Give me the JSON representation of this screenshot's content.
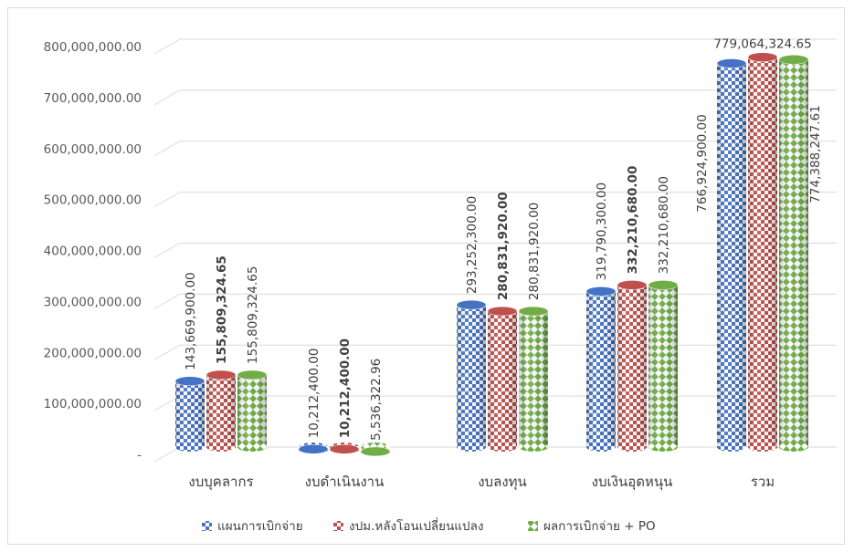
{
  "chart_data": {
    "type": "bar",
    "style": "3d-cylinder",
    "title": "",
    "xlabel": "",
    "ylabel": "",
    "ylim": [
      0,
      800000000
    ],
    "yticks": [
      {
        "value": 0,
        "label": "-"
      },
      {
        "value": 100000000,
        "label": "100,000,000.00"
      },
      {
        "value": 200000000,
        "label": "200,000,000.00"
      },
      {
        "value": 300000000,
        "label": "300,000,000.00"
      },
      {
        "value": 400000000,
        "label": "400,000,000.00"
      },
      {
        "value": 500000000,
        "label": "500,000,000.00"
      },
      {
        "value": 600000000,
        "label": "600,000,000.00"
      },
      {
        "value": 700000000,
        "label": "700,000,000.00"
      },
      {
        "value": 800000000,
        "label": "800,000,000.00"
      }
    ],
    "grid": true,
    "legend_position": "bottom",
    "categories": [
      "งบบุคลากร",
      "งบดำเนินงาน",
      "งบลงทุน",
      "งบเงินอุดหนุน",
      "รวม"
    ],
    "series": [
      {
        "name": "แผนการเบิกจ่าย",
        "color": "#4472c4",
        "values": [
          143669900.0,
          10212400.0,
          293252300.0,
          319790300.0,
          766924900.0
        ],
        "labels": [
          "143,669,900.00",
          "10,212,400.00",
          "293,252,300.00",
          "319,790,300.00",
          "766,924,900.00"
        ]
      },
      {
        "name": "งปม.หลังโอนเปลี่ยนแปลง",
        "color": "#c0504d",
        "values": [
          155809324.65,
          10212400.0,
          280831920.0,
          332210680.0,
          779064324.65
        ],
        "labels": [
          "155,809,324.65",
          "10,212,400.00",
          "280,831,920.00",
          "332,210,680.00",
          "779,064,324.65"
        ]
      },
      {
        "name": "ผลการเบิกจ่าย + PO",
        "color": "#70ad47",
        "values": [
          155809324.65,
          5536322.96,
          280831920.0,
          332210680.0,
          774388247.61
        ],
        "labels": [
          "155,809,324.65",
          "5,536,322.96",
          "280,831,920.00",
          "332,210,680.00",
          "774,388,247.61"
        ]
      }
    ]
  }
}
